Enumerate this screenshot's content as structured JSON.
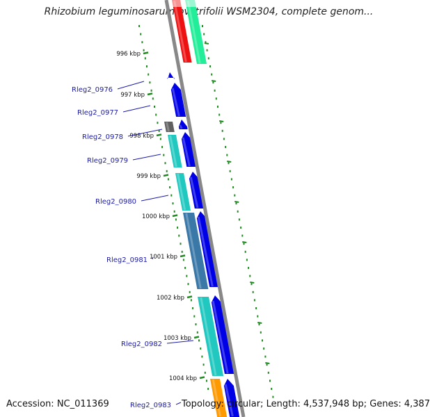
{
  "title": "Rhizobium leguminosarum bv. trifolii WSM2304, complete genom...",
  "footer": {
    "accession": "Accession: NC_011369",
    "topology": "Topology: circular; Length: 4,537,948 bp; Genes: 4,387"
  },
  "colors": {
    "backbone": "#888888",
    "ruler": "#1f8a1f",
    "gene_label": "#1a1aa8",
    "blue_feature": "#0000e6",
    "teal_feature": "#20c8c0",
    "steel_feature": "#3a78a8",
    "gray_feature": "#606060",
    "red_feature": "#ee1111",
    "mint_feature": "#22ee99",
    "orange_feature": "#ff9900"
  },
  "ruler_ticks": [
    {
      "label": "996 kbp",
      "kbp": 996
    },
    {
      "label": "997 kbp",
      "kbp": 997
    },
    {
      "label": "998 kbp",
      "kbp": 998
    },
    {
      "label": "999 kbp",
      "kbp": 999
    },
    {
      "label": "1000 kbp",
      "kbp": 1000
    },
    {
      "label": "1001 kbp",
      "kbp": 1001
    },
    {
      "label": "1002 kbp",
      "kbp": 1002
    },
    {
      "label": "1003 kbp",
      "kbp": 1003
    },
    {
      "label": "1004 kbp",
      "kbp": 1004
    }
  ],
  "gene_labels": [
    {
      "name": "Rleg2_0976"
    },
    {
      "name": "Rleg2_0977"
    },
    {
      "name": "Rleg2_0978"
    },
    {
      "name": "Rleg2_0979"
    },
    {
      "name": "Rleg2_0980"
    },
    {
      "name": "Rleg2_0981"
    },
    {
      "name": "Rleg2_0982"
    },
    {
      "name": "Rleg2_0983"
    }
  ]
}
